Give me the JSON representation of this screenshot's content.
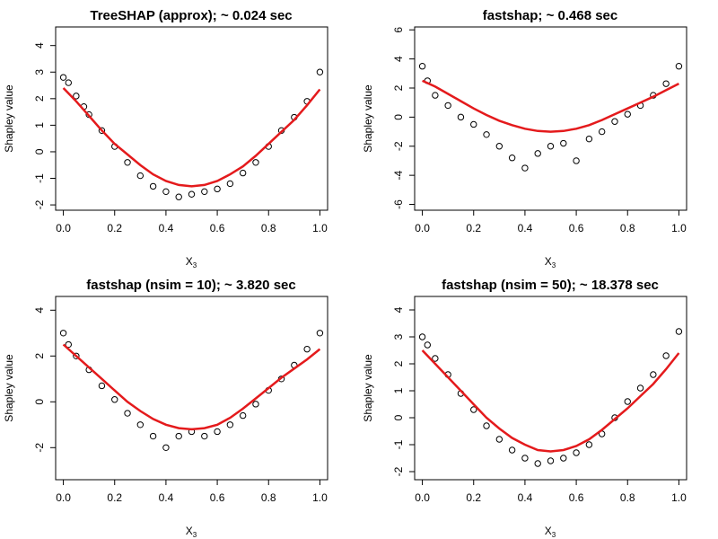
{
  "colors": {
    "points": "#000000",
    "smooth_line": "#e41a1c",
    "background": "#ffffff"
  },
  "chart_data": [
    {
      "type": "scatter",
      "title": "TreeSHAP (approx); ~ 0.024 sec",
      "xlabel": "X",
      "xlabel_sub": "3",
      "ylabel": "Shapley value",
      "xlim": [
        -0.03,
        1.03
      ],
      "ylim": [
        -2.2,
        4.7
      ],
      "xticks": [
        0.0,
        0.2,
        0.4,
        0.6,
        0.8,
        1.0
      ],
      "xtick_labels": [
        "0.0",
        "0.2",
        "0.4",
        "0.6",
        "0.8",
        "1.0"
      ],
      "yticks": [
        -2,
        -1,
        0,
        1,
        2,
        3,
        4
      ],
      "ytick_labels": [
        "-2",
        "-1",
        "0",
        "1",
        "2",
        "3",
        "4"
      ],
      "grid": false,
      "series": [
        {
          "kind": "points",
          "x": [
            0.0,
            0.02,
            0.05,
            0.08,
            0.1,
            0.15,
            0.2,
            0.25,
            0.3,
            0.35,
            0.4,
            0.45,
            0.5,
            0.55,
            0.6,
            0.65,
            0.7,
            0.75,
            0.8,
            0.85,
            0.9,
            0.95,
            1.0
          ],
          "y": [
            2.8,
            2.6,
            2.1,
            1.7,
            1.4,
            0.8,
            0.2,
            -0.4,
            -0.9,
            -1.3,
            -1.5,
            -1.7,
            -1.6,
            -1.5,
            -1.4,
            -1.2,
            -0.8,
            -0.4,
            0.2,
            0.8,
            1.3,
            1.9,
            3.0
          ]
        },
        {
          "kind": "smooth",
          "x": [
            0.0,
            0.05,
            0.1,
            0.15,
            0.2,
            0.25,
            0.3,
            0.35,
            0.4,
            0.45,
            0.5,
            0.55,
            0.6,
            0.65,
            0.7,
            0.75,
            0.8,
            0.85,
            0.9,
            0.95,
            1.0
          ],
          "y": [
            2.4,
            1.9,
            1.35,
            0.8,
            0.3,
            -0.1,
            -0.5,
            -0.85,
            -1.1,
            -1.25,
            -1.3,
            -1.25,
            -1.1,
            -0.85,
            -0.55,
            -0.15,
            0.3,
            0.75,
            1.2,
            1.75,
            2.35
          ]
        }
      ]
    },
    {
      "type": "scatter",
      "title": "fastshap; ~ 0.468 sec",
      "xlabel": "X",
      "xlabel_sub": "3",
      "ylabel": "Shapley value",
      "xlim": [
        -0.03,
        1.03
      ],
      "ylim": [
        -6.4,
        6.2
      ],
      "xticks": [
        0.0,
        0.2,
        0.4,
        0.6,
        0.8,
        1.0
      ],
      "xtick_labels": [
        "0.0",
        "0.2",
        "0.4",
        "0.6",
        "0.8",
        "1.0"
      ],
      "yticks": [
        -6,
        -4,
        -2,
        0,
        2,
        4,
        6
      ],
      "ytick_labels": [
        "-6",
        "-4",
        "-2",
        "0",
        "2",
        "4",
        "6"
      ],
      "grid": false,
      "series": [
        {
          "kind": "points",
          "x": [
            0.0,
            0.02,
            0.05,
            0.1,
            0.15,
            0.2,
            0.25,
            0.3,
            0.35,
            0.4,
            0.45,
            0.5,
            0.55,
            0.6,
            0.65,
            0.7,
            0.75,
            0.8,
            0.85,
            0.9,
            0.95,
            1.0
          ],
          "y": [
            3.5,
            2.5,
            1.5,
            0.8,
            0.0,
            -0.5,
            -1.2,
            -2.0,
            -2.8,
            -3.5,
            -2.5,
            -2.0,
            -1.8,
            -3.0,
            -1.5,
            -1.0,
            -0.3,
            0.2,
            0.8,
            1.5,
            2.3,
            3.5
          ]
        },
        {
          "kind": "smooth",
          "x": [
            0.0,
            0.05,
            0.1,
            0.15,
            0.2,
            0.25,
            0.3,
            0.35,
            0.4,
            0.45,
            0.5,
            0.55,
            0.6,
            0.65,
            0.7,
            0.75,
            0.8,
            0.85,
            0.9,
            0.95,
            1.0
          ],
          "y": [
            2.5,
            2.1,
            1.6,
            1.1,
            0.6,
            0.15,
            -0.25,
            -0.55,
            -0.8,
            -0.95,
            -1.0,
            -0.95,
            -0.8,
            -0.55,
            -0.2,
            0.2,
            0.6,
            1.0,
            1.4,
            1.85,
            2.3
          ]
        }
      ]
    },
    {
      "type": "scatter",
      "title": "fastshap (nsim = 10); ~ 3.820 sec",
      "xlabel": "X",
      "xlabel_sub": "3",
      "ylabel": "Shapley value",
      "xlim": [
        -0.03,
        1.03
      ],
      "ylim": [
        -3.4,
        4.6
      ],
      "xticks": [
        0.0,
        0.2,
        0.4,
        0.6,
        0.8,
        1.0
      ],
      "xtick_labels": [
        "0.0",
        "0.2",
        "0.4",
        "0.6",
        "0.8",
        "1.0"
      ],
      "yticks": [
        -2,
        0,
        2,
        4
      ],
      "ytick_labels": [
        "-2",
        "0",
        "2",
        "4"
      ],
      "grid": false,
      "series": [
        {
          "kind": "points",
          "x": [
            0.0,
            0.02,
            0.05,
            0.1,
            0.15,
            0.2,
            0.25,
            0.3,
            0.35,
            0.4,
            0.45,
            0.5,
            0.55,
            0.6,
            0.65,
            0.7,
            0.75,
            0.8,
            0.85,
            0.9,
            0.95,
            1.0
          ],
          "y": [
            3.0,
            2.5,
            2.0,
            1.4,
            0.7,
            0.1,
            -0.5,
            -1.0,
            -1.5,
            -2.0,
            -1.5,
            -1.3,
            -1.5,
            -1.3,
            -1.0,
            -0.6,
            -0.1,
            0.5,
            1.0,
            1.6,
            2.3,
            3.0
          ]
        },
        {
          "kind": "smooth",
          "x": [
            0.0,
            0.05,
            0.1,
            0.15,
            0.2,
            0.25,
            0.3,
            0.35,
            0.4,
            0.45,
            0.5,
            0.55,
            0.6,
            0.65,
            0.7,
            0.75,
            0.8,
            0.85,
            0.9,
            0.95,
            1.0
          ],
          "y": [
            2.5,
            2.0,
            1.5,
            1.0,
            0.5,
            0.0,
            -0.4,
            -0.75,
            -1.0,
            -1.15,
            -1.2,
            -1.15,
            -1.0,
            -0.7,
            -0.3,
            0.15,
            0.6,
            1.05,
            1.45,
            1.85,
            2.3
          ]
        }
      ]
    },
    {
      "type": "scatter",
      "title": "fastshap (nsim = 50); ~ 18.378 sec",
      "xlabel": "X",
      "xlabel_sub": "3",
      "ylabel": "Shapley value",
      "xlim": [
        -0.03,
        1.03
      ],
      "ylim": [
        -2.3,
        4.5
      ],
      "xticks": [
        0.0,
        0.2,
        0.4,
        0.6,
        0.8,
        1.0
      ],
      "xtick_labels": [
        "0.0",
        "0.2",
        "0.4",
        "0.6",
        "0.8",
        "1.0"
      ],
      "yticks": [
        -2,
        -1,
        0,
        1,
        2,
        3,
        4
      ],
      "ytick_labels": [
        "-2",
        "-1",
        "0",
        "1",
        "2",
        "3",
        "4"
      ],
      "grid": false,
      "series": [
        {
          "kind": "points",
          "x": [
            0.0,
            0.02,
            0.05,
            0.1,
            0.15,
            0.2,
            0.25,
            0.3,
            0.35,
            0.4,
            0.45,
            0.5,
            0.55,
            0.6,
            0.65,
            0.7,
            0.75,
            0.8,
            0.85,
            0.9,
            0.95,
            1.0
          ],
          "y": [
            3.0,
            2.7,
            2.2,
            1.6,
            0.9,
            0.3,
            -0.3,
            -0.8,
            -1.2,
            -1.5,
            -1.7,
            -1.6,
            -1.5,
            -1.3,
            -1.0,
            -0.6,
            0.0,
            0.6,
            1.1,
            1.6,
            2.3,
            3.2
          ]
        },
        {
          "kind": "smooth",
          "x": [
            0.0,
            0.05,
            0.1,
            0.15,
            0.2,
            0.25,
            0.3,
            0.35,
            0.4,
            0.45,
            0.5,
            0.55,
            0.6,
            0.65,
            0.7,
            0.75,
            0.8,
            0.85,
            0.9,
            0.95,
            1.0
          ],
          "y": [
            2.5,
            2.0,
            1.5,
            1.0,
            0.5,
            0.0,
            -0.4,
            -0.75,
            -1.0,
            -1.2,
            -1.25,
            -1.2,
            -1.05,
            -0.8,
            -0.45,
            -0.05,
            0.35,
            0.8,
            1.25,
            1.8,
            2.4
          ]
        }
      ]
    }
  ]
}
